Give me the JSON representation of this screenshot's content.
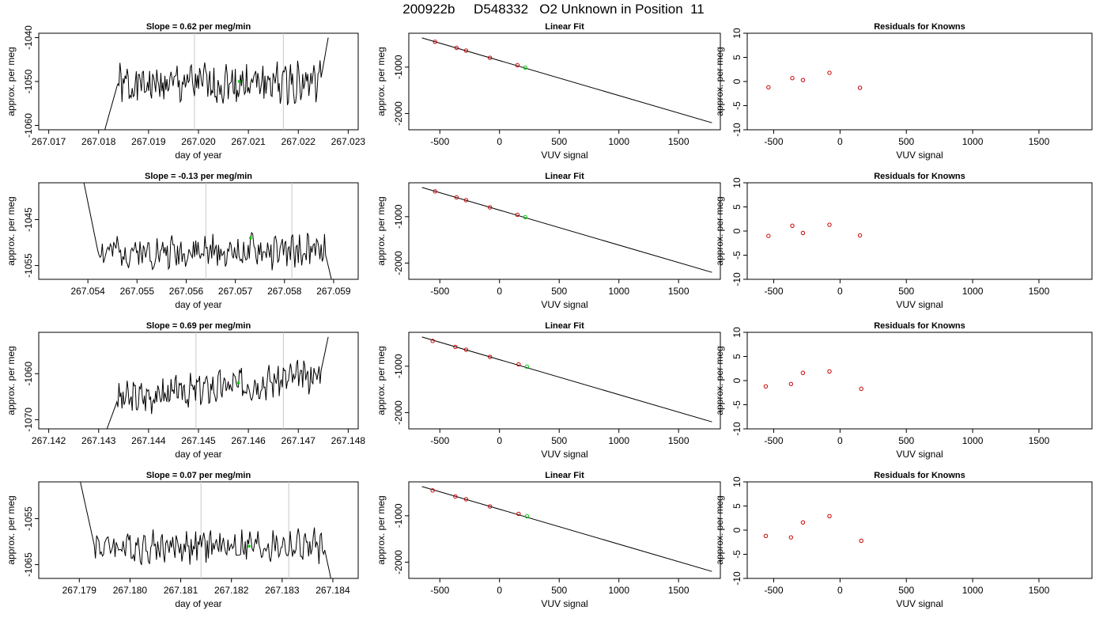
{
  "page": {
    "title": "200922b     D548332   O2 Unknown in Position  11"
  },
  "chart_data": [
    {
      "type": "line",
      "title": "Slope =  0.62  per meg/min",
      "xlabel": "day of year",
      "ylabel": "approx. per meg",
      "xlim": [
        267.0168,
        267.0232
      ],
      "ylim": [
        -1061,
        -1039
      ],
      "xticks": [
        "267.017",
        "267.018",
        "267.019",
        "267.020",
        "267.021",
        "267.022",
        "267.023"
      ],
      "yticks": [
        "-1060",
        "-1050",
        "-1040"
      ],
      "vlines": [
        267.01992,
        267.0217
      ],
      "highlight_point": {
        "x": 267.02082,
        "y": -1050.0
      },
      "series": [
        {
          "color": "#000000",
          "start": 267.0181,
          "end": 267.0226,
          "pre": -1062,
          "base": -1051,
          "trend": 1,
          "amp": 4,
          "post": -1040,
          "seed": 1
        }
      ]
    },
    {
      "type": "line",
      "title": "Residuals for Knowns",
      "xlabel": "VUV signal",
      "ylabel": "approx. per meg",
      "xlim": [
        -700,
        1900
      ],
      "ylim": [
        -10,
        10
      ],
      "xticks": [
        "-500",
        "0",
        "500",
        "1000",
        "1500"
      ],
      "yticks": [
        "-10",
        "-5",
        "0",
        "5",
        "10"
      ],
      "series": [
        {
          "kind": "residuals",
          "color": "#cc0000",
          "x": [
            -540,
            -360,
            -280,
            -80,
            150
          ],
          "y": [
            -1.2,
            0.7,
            0.3,
            1.8,
            -1.3
          ]
        }
      ]
    },
    {
      "type": "line",
      "title": "Linear Fit",
      "xlabel": "VUV signal",
      "ylabel": "approx. per meg",
      "xlim": [
        -760,
        1850
      ],
      "ylim": [
        -2350,
        -270
      ],
      "xticks": [
        "-500",
        "0",
        "500",
        "1000",
        "1500"
      ],
      "yticks": [
        "-1000",
        "-2000"
      ],
      "fit_line": {
        "x": [
          -650,
          1780
        ],
        "y": [
          -370,
          -2200
        ]
      },
      "series": [
        {
          "kind": "knowns",
          "color": "#cc0000",
          "x": [
            -540,
            -360,
            -280,
            -80,
            150
          ],
          "y": [
            -455,
            -585,
            -645,
            -800,
            -960
          ]
        },
        {
          "kind": "unknown",
          "color": "#00cc00",
          "x": [
            215
          ],
          "y": [
            -1010
          ]
        }
      ]
    },
    {
      "type": "line",
      "title": "Slope =  -0.13  per meg/min",
      "xlabel": "day of year",
      "ylabel": "approx. per meg",
      "xlim": [
        267.053,
        267.0595
      ],
      "ylim": [
        -1058,
        -1037
      ],
      "xticks": [
        "267.054",
        "267.055",
        "267.056",
        "267.057",
        "267.058",
        "267.059"
      ],
      "yticks": [
        "-1055",
        "-1045"
      ],
      "vlines": [
        267.0564,
        267.05815
      ],
      "highlight_point": {
        "x": 267.05731,
        "y": -1049.0
      },
      "series": [
        {
          "color": "#000000",
          "start": 267.0539,
          "end": 267.059,
          "pre": -1036,
          "base": -1052,
          "trend": 0,
          "amp": 3,
          "post": -1060,
          "seed": 2
        }
      ]
    },
    {
      "type": "line",
      "title": "Residuals for Knowns",
      "xlabel": "VUV signal",
      "ylabel": "approx. per meg",
      "xlim": [
        -700,
        1900
      ],
      "ylim": [
        -10,
        10
      ],
      "xticks": [
        "-500",
        "0",
        "500",
        "1000",
        "1500"
      ],
      "yticks": [
        "-10",
        "-5",
        "0",
        "5",
        "10"
      ],
      "series": [
        {
          "kind": "residuals",
          "color": "#cc0000",
          "x": [
            -540,
            -360,
            -280,
            -80,
            150
          ],
          "y": [
            -1.0,
            1.1,
            -0.4,
            1.3,
            -0.9
          ]
        }
      ]
    },
    {
      "type": "line",
      "title": "Linear Fit",
      "xlabel": "VUV signal",
      "ylabel": "approx. per meg",
      "xlim": [
        -760,
        1850
      ],
      "ylim": [
        -2350,
        -270
      ],
      "xticks": [
        "-500",
        "0",
        "500",
        "1000",
        "1500"
      ],
      "yticks": [
        "-1000",
        "-2000"
      ],
      "fit_line": {
        "x": [
          -650,
          1780
        ],
        "y": [
          -370,
          -2200
        ]
      },
      "series": [
        {
          "kind": "knowns",
          "color": "#cc0000",
          "x": [
            -540,
            -360,
            -280,
            -80,
            150
          ],
          "y": [
            -455,
            -585,
            -645,
            -800,
            -960
          ]
        },
        {
          "kind": "unknown",
          "color": "#00cc00",
          "x": [
            215
          ],
          "y": [
            -1010
          ]
        }
      ]
    },
    {
      "type": "line",
      "title": "Slope =  0.69  per meg/min",
      "xlabel": "day of year",
      "ylabel": "approx. per meg",
      "xlim": [
        267.1418,
        267.1482
      ],
      "ylim": [
        -1072,
        -1051
      ],
      "xticks": [
        "267.142",
        "267.143",
        "267.144",
        "267.145",
        "267.146",
        "267.147",
        "267.148"
      ],
      "yticks": [
        "-1070",
        "-1060"
      ],
      "vlines": [
        267.14495,
        267.1467
      ],
      "highlight_point": {
        "x": 267.1458,
        "y": -1062.0
      },
      "series": [
        {
          "color": "#000000",
          "start": 267.1431,
          "end": 267.1476,
          "pre": -1074,
          "base": -1066,
          "trend": 6,
          "amp": 3,
          "post": -1052,
          "seed": 3
        }
      ]
    },
    {
      "type": "line",
      "title": "Residuals for Knowns",
      "xlabel": "VUV signal",
      "ylabel": "approx. per meg",
      "xlim": [
        -700,
        1900
      ],
      "ylim": [
        -10,
        10
      ],
      "xticks": [
        "-500",
        "0",
        "500",
        "1000",
        "1500"
      ],
      "yticks": [
        "-10",
        "-5",
        "0",
        "5",
        "10"
      ],
      "series": [
        {
          "kind": "residuals",
          "color": "#cc0000",
          "x": [
            -560,
            -370,
            -280,
            -80,
            160
          ],
          "y": [
            -1.2,
            -0.7,
            1.6,
            1.9,
            -1.7
          ]
        }
      ]
    },
    {
      "type": "line",
      "title": "Linear Fit",
      "xlabel": "VUV signal",
      "ylabel": "approx. per meg",
      "xlim": [
        -760,
        1850
      ],
      "ylim": [
        -2350,
        -270
      ],
      "xticks": [
        "-500",
        "0",
        "500",
        "1000",
        "1500"
      ],
      "yticks": [
        "-1000",
        "-2000"
      ],
      "fit_line": {
        "x": [
          -650,
          1780
        ],
        "y": [
          -370,
          -2200
        ]
      },
      "series": [
        {
          "kind": "knowns",
          "color": "#cc0000",
          "x": [
            -560,
            -370,
            -280,
            -80,
            160
          ],
          "y": [
            -455,
            -585,
            -645,
            -800,
            -960
          ]
        },
        {
          "kind": "unknown",
          "color": "#00cc00",
          "x": [
            230
          ],
          "y": [
            -1010
          ]
        }
      ]
    },
    {
      "type": "line",
      "title": "Slope =  0.07  per meg/min",
      "xlabel": "day of year",
      "ylabel": "approx. per meg",
      "xlim": [
        267.1782,
        267.1845
      ],
      "ylim": [
        -1068,
        -1047
      ],
      "xticks": [
        "267.179",
        "267.180",
        "267.181",
        "267.182",
        "267.183",
        "267.184"
      ],
      "yticks": [
        "-1065",
        "-1055"
      ],
      "vlines": [
        267.1814,
        267.18313
      ],
      "highlight_point": {
        "x": 267.18235,
        "y": -1061.0
      },
      "series": [
        {
          "color": "#000000",
          "start": 267.179,
          "end": 267.184,
          "pre": -1046,
          "base": -1061,
          "trend": 0,
          "amp": 3,
          "post": -1070,
          "seed": 4
        }
      ]
    },
    {
      "type": "line",
      "title": "Residuals for Knowns",
      "xlabel": "VUV signal",
      "ylabel": "approx. per meg",
      "xlim": [
        -700,
        1900
      ],
      "ylim": [
        -10,
        10
      ],
      "xticks": [
        "-500",
        "0",
        "500",
        "1000",
        "1500"
      ],
      "yticks": [
        "-10",
        "-5",
        "0",
        "5",
        "10"
      ],
      "series": [
        {
          "kind": "residuals",
          "color": "#cc0000",
          "x": [
            -560,
            -370,
            -280,
            -80,
            160
          ],
          "y": [
            -1.2,
            -1.5,
            1.6,
            2.9,
            -2.2
          ]
        }
      ]
    },
    {
      "type": "line",
      "title": "Linear Fit",
      "xlabel": "VUV signal",
      "ylabel": "approx. per meg",
      "xlim": [
        -760,
        1850
      ],
      "ylim": [
        -2350,
        -270
      ],
      "xticks": [
        "-500",
        "0",
        "500",
        "1000",
        "1500"
      ],
      "yticks": [
        "-1000",
        "-2000"
      ],
      "fit_line": {
        "x": [
          -650,
          1780
        ],
        "y": [
          -370,
          -2200
        ]
      },
      "series": [
        {
          "kind": "knowns",
          "color": "#cc0000",
          "x": [
            -560,
            -370,
            -280,
            -80,
            160
          ],
          "y": [
            -455,
            -585,
            -645,
            -800,
            -960
          ]
        },
        {
          "kind": "unknown",
          "color": "#00cc00",
          "x": [
            230
          ],
          "y": [
            -1010
          ]
        }
      ]
    }
  ]
}
